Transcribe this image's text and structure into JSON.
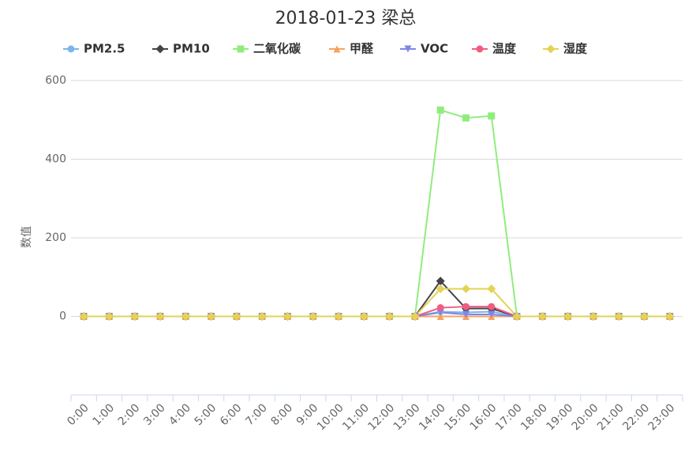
{
  "chart_data": {
    "type": "line",
    "title": "2018-01-23 梁总",
    "y_label": "数值",
    "categories": [
      "0:00",
      "1:00",
      "2:00",
      "3:00",
      "4:00",
      "5:00",
      "6:00",
      "7:00",
      "8:00",
      "9:00",
      "10:00",
      "11:00",
      "12:00",
      "13:00",
      "14:00",
      "15:00",
      "16:00",
      "17:00",
      "18:00",
      "19:00",
      "20:00",
      "21:00",
      "22:00",
      "23:00"
    ],
    "ylim": [
      -200,
      600
    ],
    "yticks": [
      0,
      200,
      400,
      600
    ],
    "grid": true,
    "series": [
      {
        "name": "PM2.5",
        "color": "#7cb5ec",
        "marker": "circle",
        "values": [
          0,
          0,
          0,
          0,
          0,
          0,
          0,
          0,
          0,
          0,
          0,
          0,
          0,
          0,
          12,
          10,
          12,
          0,
          0,
          0,
          0,
          0,
          0,
          0
        ]
      },
      {
        "name": "PM10",
        "color": "#434348",
        "marker": "diamond",
        "values": [
          0,
          0,
          0,
          0,
          0,
          0,
          0,
          0,
          0,
          0,
          0,
          0,
          0,
          0,
          90,
          20,
          20,
          0,
          0,
          0,
          0,
          0,
          0,
          0
        ]
      },
      {
        "name": "二氧化碳",
        "color": "#90ed7d",
        "marker": "square",
        "values": [
          0,
          0,
          0,
          0,
          0,
          0,
          0,
          0,
          0,
          0,
          0,
          0,
          0,
          0,
          525,
          505,
          510,
          0,
          0,
          0,
          0,
          0,
          0,
          0
        ]
      },
      {
        "name": "甲醛",
        "color": "#f7a35c",
        "marker": "triangle",
        "values": [
          0,
          0,
          0,
          0,
          0,
          0,
          0,
          0,
          0,
          0,
          0,
          0,
          0,
          0,
          0,
          0,
          0,
          0,
          0,
          0,
          0,
          0,
          0,
          0
        ]
      },
      {
        "name": "VOC",
        "color": "#8085e9",
        "marker": "triangle-down",
        "values": [
          0,
          0,
          0,
          0,
          0,
          0,
          0,
          0,
          0,
          0,
          0,
          0,
          0,
          0,
          10,
          5,
          5,
          0,
          0,
          0,
          0,
          0,
          0,
          0
        ]
      },
      {
        "name": "温度",
        "color": "#f15c80",
        "marker": "circle",
        "values": [
          0,
          0,
          0,
          0,
          0,
          0,
          0,
          0,
          0,
          0,
          0,
          0,
          0,
          0,
          22,
          25,
          25,
          0,
          0,
          0,
          0,
          0,
          0,
          0
        ]
      },
      {
        "name": "湿度",
        "color": "#e4d354",
        "marker": "diamond",
        "values": [
          0,
          0,
          0,
          0,
          0,
          0,
          0,
          0,
          0,
          0,
          0,
          0,
          0,
          0,
          70,
          70,
          70,
          0,
          0,
          0,
          0,
          0,
          0,
          0
        ]
      }
    ]
  }
}
